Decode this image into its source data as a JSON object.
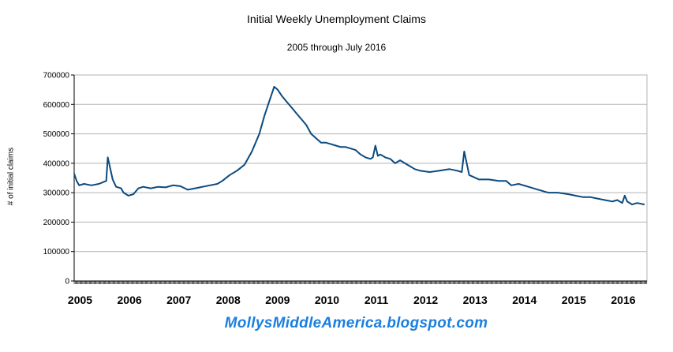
{
  "chart_data": {
    "type": "line",
    "title": "Initial Weekly Unemployment Claims",
    "subtitle": "2005 through July 2016",
    "ylabel": "# of initial claims",
    "xlabel": "",
    "ylim": [
      0,
      700000
    ],
    "yticks": [
      0,
      100000,
      200000,
      300000,
      400000,
      500000,
      600000,
      700000
    ],
    "yticklabels": [
      "0",
      "100000",
      "200000",
      "300000",
      "400000",
      "500000",
      "600000",
      "700000"
    ],
    "xticklabels": [
      "2005",
      "2006",
      "2007",
      "2008",
      "2009",
      "2010",
      "2011",
      "2012",
      "2013",
      "2014",
      "2015",
      "2016"
    ],
    "grid": "horizontal",
    "series_color": "#0b4a80",
    "series": [
      {
        "name": "",
        "x": [
          2005.0,
          2005.05,
          2005.1,
          2005.2,
          2005.35,
          2005.5,
          2005.65,
          2005.68,
          2005.72,
          2005.78,
          2005.85,
          2005.95,
          2006.0,
          2006.1,
          2006.2,
          2006.3,
          2006.4,
          2006.55,
          2006.7,
          2006.85,
          2007.0,
          2007.15,
          2007.3,
          2007.45,
          2007.6,
          2007.75,
          2007.9,
          2008.0,
          2008.15,
          2008.3,
          2008.45,
          2008.6,
          2008.75,
          2008.85,
          2008.95,
          2009.05,
          2009.12,
          2009.2,
          2009.3,
          2009.4,
          2009.5,
          2009.6,
          2009.7,
          2009.8,
          2009.9,
          2010.0,
          2010.1,
          2010.2,
          2010.3,
          2010.4,
          2010.5,
          2010.6,
          2010.7,
          2010.8,
          2010.9,
          2011.0,
          2011.05,
          2011.1,
          2011.15,
          2011.2,
          2011.3,
          2011.4,
          2011.5,
          2011.6,
          2011.7,
          2011.8,
          2011.9,
          2012.0,
          2012.2,
          2012.4,
          2012.6,
          2012.75,
          2012.85,
          2012.9,
          2013.0,
          2013.2,
          2013.4,
          2013.6,
          2013.75,
          2013.85,
          2014.0,
          2014.2,
          2014.4,
          2014.6,
          2014.8,
          2015.0,
          2015.15,
          2015.3,
          2015.45,
          2015.6,
          2015.75,
          2015.9,
          2016.0,
          2016.1,
          2016.15,
          2016.2,
          2016.3,
          2016.4,
          2016.55
        ],
        "values": [
          365000,
          340000,
          325000,
          330000,
          325000,
          330000,
          340000,
          420000,
          390000,
          345000,
          320000,
          315000,
          300000,
          290000,
          295000,
          315000,
          320000,
          315000,
          320000,
          318000,
          325000,
          322000,
          310000,
          315000,
          320000,
          325000,
          330000,
          340000,
          360000,
          375000,
          395000,
          440000,
          500000,
          560000,
          610000,
          660000,
          650000,
          630000,
          610000,
          590000,
          570000,
          550000,
          530000,
          500000,
          485000,
          470000,
          470000,
          465000,
          460000,
          455000,
          455000,
          450000,
          445000,
          430000,
          420000,
          415000,
          420000,
          460000,
          425000,
          430000,
          420000,
          415000,
          400000,
          410000,
          400000,
          390000,
          380000,
          375000,
          370000,
          375000,
          380000,
          375000,
          370000,
          440000,
          360000,
          345000,
          345000,
          340000,
          340000,
          325000,
          330000,
          320000,
          310000,
          300000,
          300000,
          295000,
          290000,
          285000,
          285000,
          280000,
          275000,
          270000,
          275000,
          265000,
          290000,
          270000,
          260000,
          265000,
          260000
        ]
      }
    ]
  },
  "watermark": "MollysMiddleAmerica.blogspot.com"
}
